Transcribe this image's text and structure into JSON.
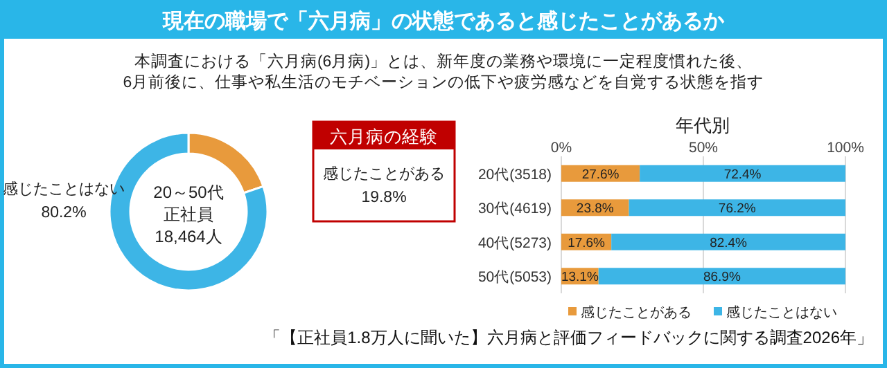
{
  "chart_data": [
    {
      "type": "donut",
      "title": "現在の職場で「六月病」の状態であると感じたことがあるか",
      "subtitle": "本調査における「六月病(6月病)」とは、新年度の業務や環境に一定程度慣れた後、\n6月前後に、仕事や私生活のモチベーションの低下や疲労感などを自覚する状態を指す",
      "categories": [
        "感じたことがある",
        "感じたことはない"
      ],
      "values": [
        19.8,
        80.2
      ],
      "value_labels": [
        "19.8%",
        "80.2%"
      ],
      "colors": [
        "#e89a3c",
        "#3db5e6"
      ],
      "annotations": [
        "20～50代",
        "正社員",
        "18,464人",
        "六月病の経験"
      ]
    },
    {
      "type": "bar",
      "orientation": "horizontal",
      "stacked": true,
      "title": "年代別",
      "categories": [
        "20代(3518)",
        "30代(4619)",
        "40代(5273)",
        "50代(5053)"
      ],
      "series": [
        {
          "name": "感じたことがある",
          "color": "#e89a3c",
          "values": [
            27.6,
            23.8,
            17.6,
            13.1
          ],
          "value_labels": [
            "27.6%",
            "23.8%",
            "17.6%",
            "13.1%"
          ]
        },
        {
          "name": "感じたことはない",
          "color": "#3db5e6",
          "values": [
            72.4,
            76.2,
            82.4,
            86.9
          ],
          "value_labels": [
            "72.4%",
            "76.2%",
            "82.4%",
            "86.9%"
          ]
        }
      ],
      "xlim": [
        0,
        100
      ],
      "xticks": [
        {
          "value": 0,
          "label": "0%"
        },
        {
          "value": 50,
          "label": "50%"
        },
        {
          "value": 100,
          "label": "100%"
        }
      ],
      "grid": "x",
      "legend": "bottom",
      "annotations": [
        "「【正社員1.8万人に聞いた】六月病と評価フィードバックに関する調査2026年」"
      ]
    }
  ]
}
